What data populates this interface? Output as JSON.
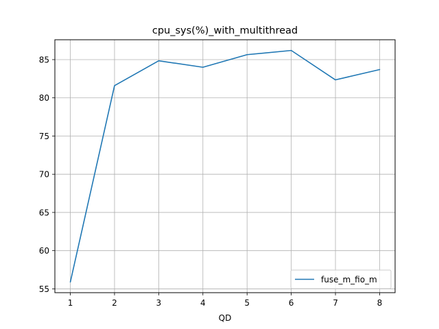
{
  "chart_data": {
    "type": "line",
    "title": "cpu_sys(%)_with_multithread",
    "xlabel": "QD",
    "ylabel": "",
    "x": [
      1,
      2,
      3,
      4,
      5,
      6,
      7,
      8
    ],
    "series": [
      {
        "name": "fuse_m_fio_m",
        "values": [
          55.9,
          81.6,
          84.85,
          84.0,
          85.65,
          86.2,
          82.35,
          83.7
        ],
        "color": "#1f77b4"
      }
    ],
    "xlim": [
      0.65,
      8.35
    ],
    "ylim": [
      54.5,
      87.6
    ],
    "xticks": [
      1,
      2,
      3,
      4,
      5,
      6,
      7,
      8
    ],
    "yticks": [
      55,
      60,
      65,
      70,
      75,
      80,
      85
    ],
    "grid": true,
    "legend_position": "lower-right"
  }
}
